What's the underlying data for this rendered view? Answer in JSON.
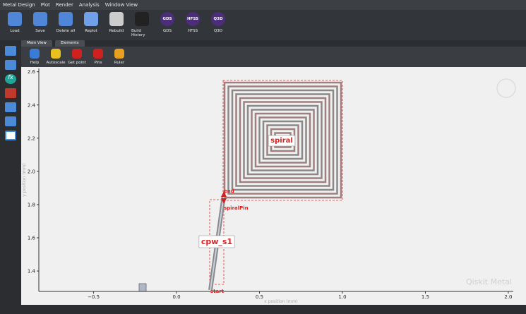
{
  "menu": [
    "Metal Design",
    "Plot",
    "Render",
    "Analysis",
    "Window View"
  ],
  "toolbar": [
    {
      "label": "Load"
    },
    {
      "label": "Save"
    },
    {
      "label": "Delete all"
    },
    {
      "label": "Replot"
    },
    {
      "label": "Rebuild"
    },
    {
      "label": "Build History"
    },
    {
      "label": "GDS"
    },
    {
      "label": "HFSS"
    },
    {
      "label": "Q3D"
    }
  ],
  "tabs": [
    "Main View",
    "Elements"
  ],
  "plot_toolbar": [
    "Help",
    "Autoscale",
    "Get point",
    "Pins",
    "Ruler"
  ],
  "sidebar_icon": "fx",
  "plot": {
    "xlabel": "x position (mm)",
    "ylabel": "y position (mm)",
    "xlim": [
      -0.83,
      2.03
    ],
    "ylim": [
      1.277,
      2.62
    ],
    "xticks": [
      {
        "value": -0.5,
        "label": "−0.5"
      },
      {
        "value": 0,
        "label": "0.0"
      },
      0.5,
      {
        "value": 1,
        "label": "1.0"
      },
      1.5,
      {
        "value": 2,
        "label": "2.0"
      }
    ],
    "yticks": [
      1.4,
      1.6,
      1.8,
      {
        "value": 2,
        "label": "2.0"
      },
      2.2,
      2.4,
      2.6
    ],
    "components": {
      "spiral": "spiral",
      "cpw": "cpw_s1",
      "pin_end": "end",
      "pin_spiral": "spiralPin",
      "pin_start": "start"
    },
    "watermark": "Qiskit Metal"
  }
}
